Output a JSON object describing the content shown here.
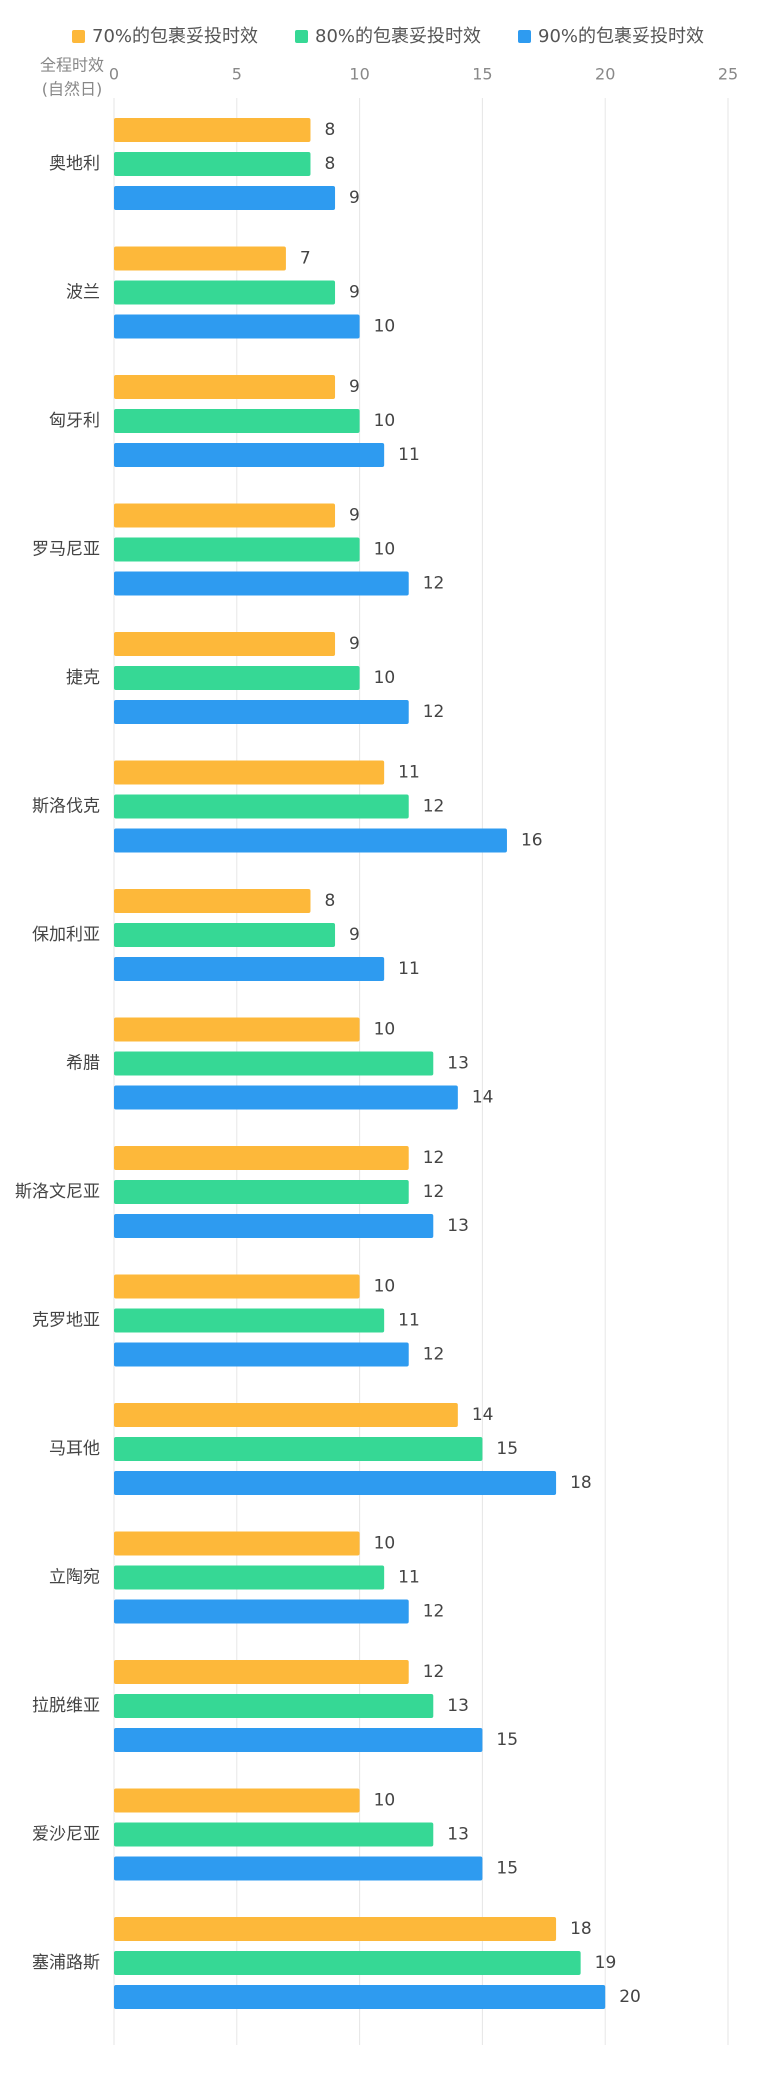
{
  "chart_data": {
    "type": "hbar",
    "y_label": "全程时效",
    "y_label_unit": "(自然日)",
    "categories": [
      "奥地利",
      "波兰",
      "匈牙利",
      "罗马尼亚",
      "捷克",
      "斯洛伐克",
      "保加利亚",
      "希腊",
      "斯洛文尼亚",
      "克罗地亚",
      "马耳他",
      "立陶宛",
      "拉脱维亚",
      "爱沙尼亚",
      "塞浦路斯"
    ],
    "series": [
      {
        "name": "70%的包裹妥投时效",
        "color": "#fdb83a",
        "values": [
          8,
          7,
          9,
          9,
          9,
          11,
          8,
          10,
          12,
          10,
          14,
          10,
          12,
          10,
          18
        ]
      },
      {
        "name": "80%的包裹妥投时效",
        "color": "#36d895",
        "values": [
          8,
          9,
          10,
          10,
          10,
          12,
          9,
          13,
          12,
          11,
          15,
          11,
          13,
          13,
          19
        ]
      },
      {
        "name": "90%的包裹妥投时效",
        "color": "#2e9bf0",
        "values": [
          9,
          10,
          11,
          12,
          12,
          16,
          11,
          14,
          13,
          12,
          18,
          12,
          15,
          15,
          20
        ]
      }
    ],
    "xlim": [
      0,
      25
    ],
    "xticks": [
      0,
      5,
      10,
      15,
      20,
      25
    ],
    "grid": true,
    "legend": "top"
  }
}
